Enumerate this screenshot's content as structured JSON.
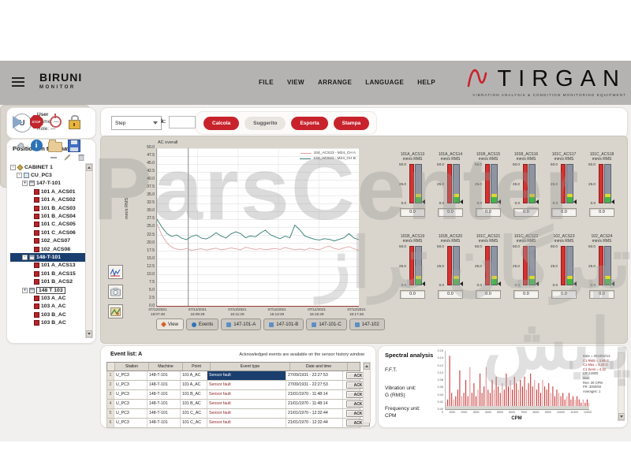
{
  "header": {
    "brand": "BIRUNI",
    "brand_sub": "MONITOR",
    "menu": [
      "FILE",
      "VIEW",
      "ARRANGE",
      "LANGUAGE",
      "HELP"
    ],
    "logo": {
      "name": "TIRGAN",
      "tagline": "VIBRATION ANALYSIS & CONDITION MONITORING EQUIPMENT",
      "accent": "#c8232c"
    }
  },
  "user_card": {
    "title": "User",
    "avatar": "U",
    "name_line": "Name: —",
    "role_line": "Role: —"
  },
  "toolbar": {
    "step_label": "Step",
    "k_label": "k:",
    "k_value": "",
    "buttons": [
      {
        "label": "Calcola",
        "cls": "primary"
      },
      {
        "label": "Suggerito",
        "cls": "secondary"
      },
      {
        "label": "Esporta",
        "cls": "primary"
      },
      {
        "label": "Stampa",
        "cls": "primary"
      }
    ]
  },
  "tree_panel": {
    "title": "Position on the shaft",
    "items": [
      {
        "label": "CABINET 1",
        "cls": "d0 k-cab exp-minus"
      },
      {
        "label": "CU_PC3",
        "cls": "d1 k-pc exp-minus"
      },
      {
        "label": "147-T-101",
        "cls": "d2 k-machine exp-plus"
      },
      {
        "label": "101 A_ACS01",
        "cls": "d3 k-sensor"
      },
      {
        "label": "101 A_ACS02",
        "cls": "d3 k-sensor"
      },
      {
        "label": "101 B_ACS03",
        "cls": "d3 k-sensor"
      },
      {
        "label": "101 B_ACS04",
        "cls": "d3 k-sensor"
      },
      {
        "label": "101 C_ACS05",
        "cls": "d3 k-sensor"
      },
      {
        "label": "101 C_ACS06",
        "cls": "d3 k-sensor"
      },
      {
        "label": "102_ACS07",
        "cls": "d3 k-sensor"
      },
      {
        "label": "102_ACS08",
        "cls": "d3 k-sensor"
      },
      {
        "label": "148-T-101",
        "cls": "d2 k-machine exp-minus sel"
      },
      {
        "label": "101 A_ACS13",
        "cls": "d3 k-sensor"
      },
      {
        "label": "101 B_ACS15",
        "cls": "d3 k-sensor"
      },
      {
        "label": "101 B_ACS2",
        "cls": "d3 k-sensor"
      },
      {
        "label": "148 T 103",
        "cls": "d2 k-machine exp-plus focus"
      },
      {
        "label": "103 A_AC",
        "cls": "d3 k-sensor"
      },
      {
        "label": "103 A_AC",
        "cls": "d3 k-sensor"
      },
      {
        "label": "103 B_AC",
        "cls": "d3 k-sensor"
      },
      {
        "label": "103 B_AC",
        "cls": "d3 k-sensor"
      }
    ]
  },
  "chart_data": [
    {
      "type": "line",
      "title": "AC overall",
      "ylabel": "mm/s RMS",
      "ylim": [
        0,
        50
      ],
      "ytick_labels": [
        "50.0",
        "47.5",
        "45.0",
        "42.5",
        "40.0",
        "37.5",
        "35.0",
        "32.5",
        "30.0",
        "27.5",
        "25.0",
        "22.5",
        "20.0",
        "17.5",
        "15.0",
        "12.5",
        "10.0",
        "7.5",
        "5.0",
        "2.5",
        "0.0"
      ],
      "x_ticks": [
        {
          "date": "07/12/2021",
          "time": "15:07:48"
        },
        {
          "date": "07/12/2021",
          "time": "15:09:29"
        },
        {
          "date": "07/12/2021",
          "time": "15:11:29"
        },
        {
          "date": "07/12/2021",
          "time": "15:13:29"
        },
        {
          "date": "07/12/2021",
          "time": "15:15:29"
        },
        {
          "date": "07/12/2021",
          "time": "15:17:48"
        }
      ],
      "cursor_frac": 0.155,
      "grid": true,
      "legend_position": "top-right",
      "series": [
        {
          "name": "104_ACS23 - M24_CH A",
          "color": "#dfa2a2",
          "values": [
            26.0,
            22.5,
            20.0,
            18.6,
            18.0,
            17.8,
            18.2,
            17.6,
            17.9,
            18.1,
            17.7,
            18.0,
            18.3,
            17.8,
            18.0,
            18.4,
            18.1,
            17.7,
            18.6,
            18.2,
            17.9,
            18.1,
            17.8,
            18.0,
            18.2,
            17.9,
            18.5,
            18.1,
            17.8,
            18.0,
            17.7,
            18.3,
            18.0,
            17.8,
            18.5,
            19.0,
            18.2,
            17.9,
            18.4,
            18.8,
            18.1,
            17.6
          ]
        },
        {
          "name": "104_ACS24 - M24_CH B",
          "color": "#317c72",
          "values": [
            27.5,
            25.0,
            23.0,
            22.0,
            22.5,
            21.5,
            21.0,
            22.0,
            22.5,
            21.5,
            21.2,
            22.0,
            23.2,
            22.2,
            21.5,
            22.8,
            23.5,
            22.9,
            21.6,
            22.2,
            21.9,
            23.1,
            24.0,
            22.6,
            21.9,
            21.3,
            22.1,
            21.6,
            25.6,
            24.1,
            22.2,
            21.6,
            21.1,
            20.9,
            21.3,
            21.1,
            20.6,
            21.1,
            21.6,
            22.9,
            21.5,
            21.0
          ]
        }
      ]
    },
    {
      "type": "bar",
      "title": "F.F.T. spectrum",
      "xlabel": "CPM",
      "color": "#c32424",
      "xlim": [
        0,
        12000
      ],
      "x_ticks": [
        "0",
        "1000",
        "2000",
        "3000",
        "4000",
        "5000",
        "6000",
        "7000",
        "8000",
        "9000",
        "10000",
        "11000",
        "12000"
      ],
      "y_ticks": [
        "0.16",
        "0.14",
        "0.12",
        "0.10",
        "0.08",
        "0.06",
        "0.04",
        "0.02",
        "0.00"
      ],
      "values": [
        0.02,
        0.03,
        0.165,
        0.05,
        0.03,
        0.04,
        0.06,
        0.12,
        0.04,
        0.05,
        0.09,
        0.04,
        0.13,
        0.05,
        0.08,
        0.04,
        0.06,
        0.11,
        0.05,
        0.07,
        0.13,
        0.06,
        0.05,
        0.09,
        0.06,
        0.1,
        0.07,
        0.05,
        0.08,
        0.06,
        0.11,
        0.07,
        0.09,
        0.06,
        0.1,
        0.08,
        0.06,
        0.09,
        0.07,
        0.1,
        0.06,
        0.08,
        0.11,
        0.07,
        0.09,
        0.06,
        0.08,
        0.05,
        0.09,
        0.07,
        0.06,
        0.08,
        0.05,
        0.07,
        0.04,
        0.06,
        0.05,
        0.04,
        0.05,
        0.03,
        0.04,
        0.05,
        0.03,
        0.04,
        0.03,
        0.04,
        0.03,
        0.02,
        0.03,
        0.02,
        0.03,
        0.02
      ]
    }
  ],
  "main": {
    "tabs": [
      {
        "label": "View",
        "cls": "active ic-view"
      },
      {
        "label": "Events",
        "cls": "ic-events"
      },
      {
        "label": "147-101-A",
        "cls": "ic-chart"
      },
      {
        "label": "147-101-B",
        "cls": "ic-chart"
      },
      {
        "label": "147-101-C",
        "cls": "ic-chart"
      },
      {
        "label": "147-102",
        "cls": "ic-chart"
      }
    ],
    "gauges": {
      "unit": "mm/s RMS",
      "scale": [
        "50.0",
        "25.0",
        "0.0"
      ],
      "row1": [
        {
          "label": "101A_ACS13",
          "value": "0.0"
        },
        {
          "label": "101A_ACS14",
          "value": "0.0"
        },
        {
          "label": "101B_ACS15",
          "value": "0.0"
        },
        {
          "label": "101B_ACS16",
          "value": "0.0"
        },
        {
          "label": "101C_ACS17",
          "value": "0.0"
        },
        {
          "label": "101C_ACS18",
          "value": "0.0"
        }
      ],
      "row2": [
        {
          "label": "101B_ACS19",
          "value": "0.0"
        },
        {
          "label": "101B_ACS20",
          "value": "0.0"
        },
        {
          "label": "101C_ACS21",
          "value": "0.0"
        },
        {
          "label": "101C_ACS22",
          "value": "0.0"
        },
        {
          "label": "102_ACS23",
          "value": "0.0"
        },
        {
          "label": "102_ACS24",
          "value": "0.0"
        }
      ]
    }
  },
  "events": {
    "title": "Event list: A",
    "note": "Acknowledged events are available on the sensor history window",
    "columns": [
      "Station",
      "Machine",
      "Point",
      "Event type",
      "Date and time"
    ],
    "ack_label": "ACK",
    "rows": [
      {
        "n": "1",
        "station": "U_PC3",
        "machine": "148-T-101",
        "point": "101 A_AC",
        "event": "Sensor fault",
        "datetime": "27/09/1931 - 22:27:53",
        "cls": "sel"
      },
      {
        "n": "2",
        "station": "U_PC3",
        "machine": "148-T-101",
        "point": "101 A_AC",
        "event": "Sensor fault",
        "datetime": "27/09/1931 - 22:27:53",
        "cls": ""
      },
      {
        "n": "3",
        "station": "U_PC3",
        "machine": "148-T-101",
        "point": "101 B_AC",
        "event": "Sensor fault",
        "datetime": "21/01/1970 - 11:48:14",
        "cls": ""
      },
      {
        "n": "4",
        "station": "U_PC3",
        "machine": "148-T-101",
        "point": "101 B_AC",
        "event": "Sensor fault",
        "datetime": "21/01/1970 - 11:48:14",
        "cls": ""
      },
      {
        "n": "5",
        "station": "U_PC3",
        "machine": "148-T-101",
        "point": "101 C_AC",
        "event": "Sensor fault",
        "datetime": "21/01/1970 - 12:32:44",
        "cls": ""
      },
      {
        "n": "6",
        "station": "U_PC3",
        "machine": "148-T-101",
        "point": "101 C_AC",
        "event": "Sensor fault",
        "datetime": "21/01/1970 - 12:32:44",
        "cls": ""
      }
    ]
  },
  "spectral": {
    "title": "Spectral analysis",
    "subtitle": "F.F.T.",
    "vib_unit_label": "Vibration unit:",
    "vib_unit": "G (RMS)",
    "freq_unit_label": "Frequency unit:",
    "freq_unit": "CPM",
    "info": [
      "Date = 2019/02/12",
      "C1 RMS = 3.66 G",
      "C1 Max = 6.19 G",
      "C1 Sens = 4.32",
      "LR: 12800",
      "Max:",
      "Res: 30 CPM",
      "FR: 3000/60",
      "Averages: 1"
    ]
  },
  "icons": {
    "tree_toolbar": [
      "collapse-icon",
      "edit-icon",
      "delete-icon"
    ],
    "chart_tools": [
      "waveform-tool-icon",
      "snapshot-tool-icon",
      "map-tool-icon"
    ],
    "actions": [
      "play-icon",
      "stop-icon",
      "power-icon",
      "lock-icon",
      "wrench-icon",
      "info-icon",
      "folder-icon",
      "save-icon"
    ]
  },
  "watermark": {
    "line1": "ParsCenter",
    "line2": "تیرگان تراز پایش"
  }
}
